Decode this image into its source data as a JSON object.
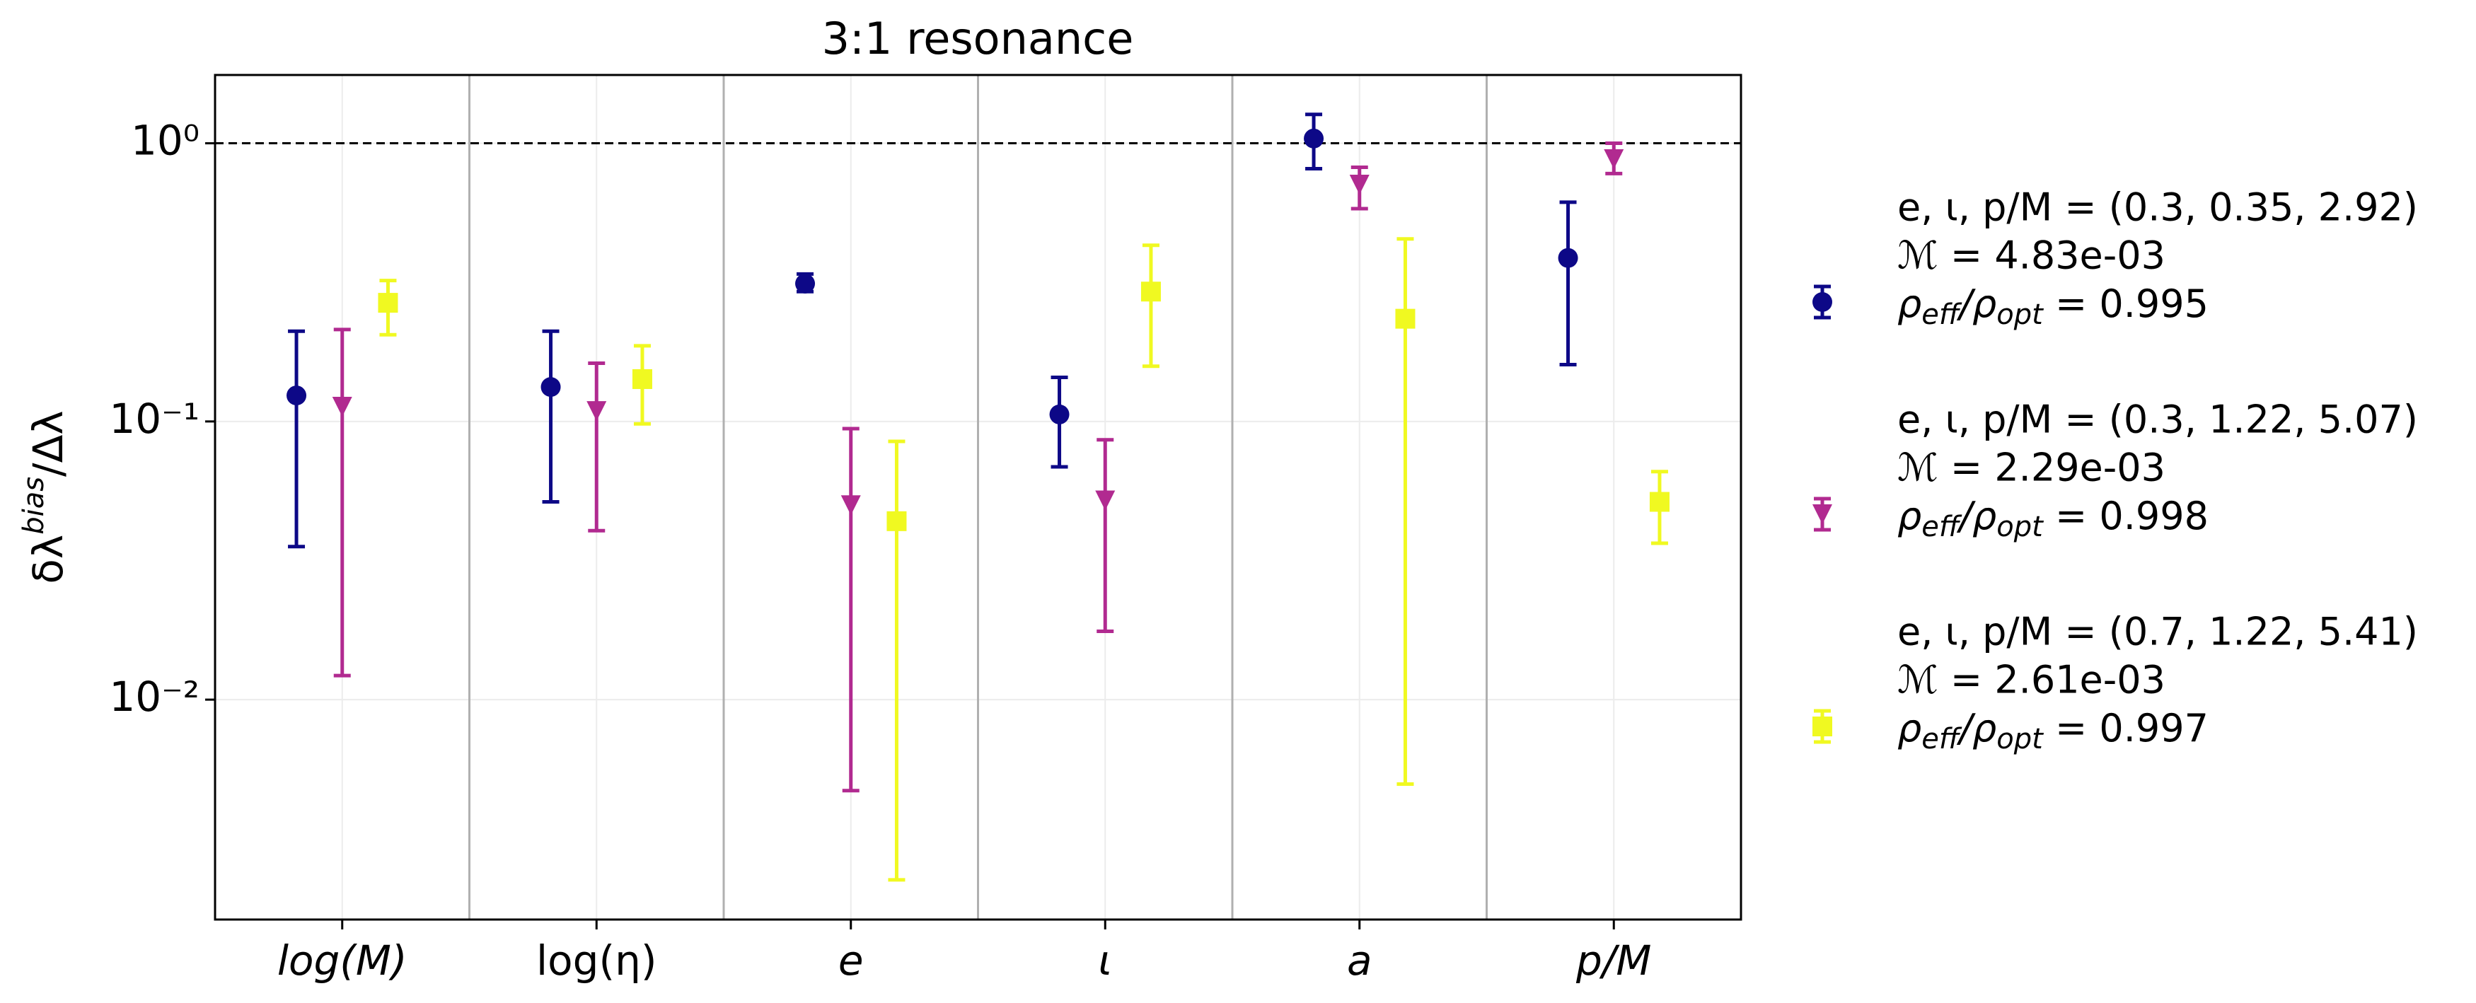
{
  "chart_data": {
    "type": "errorbar",
    "title": "3:1 resonance",
    "ylabel": [
      "δλ",
      "bias",
      "/Δλ"
    ],
    "log_y": true,
    "grid": true,
    "categories": [
      "log(M)",
      "log(η)",
      "e",
      "ι",
      "a",
      "p/M"
    ],
    "ylim": [
      0.00162,
      1.76
    ],
    "yticks": [
      {
        "value": 1,
        "label": "10⁰"
      },
      {
        "value": 0.1,
        "label": "10⁻¹"
      },
      {
        "value": 0.01,
        "label": "10⁻²"
      }
    ],
    "reference_line": 1,
    "legend_position": "right",
    "series": [
      {
        "name": "e, ι, p/M = (0.3, 0.35, 2.92)",
        "mismatch": "ℳ = 4.83e-03",
        "snr_label": [
          "ρ",
          "eff",
          "/ρ",
          "opt",
          " = 0.995"
        ],
        "color": "#0d0887",
        "marker": "o",
        "values": [
          0.124,
          0.133,
          0.313,
          0.106,
          1.04,
          0.387
        ],
        "lower": [
          0.0355,
          0.0514,
          0.293,
          0.0687,
          0.81,
          0.16
        ],
        "upper": [
          0.211,
          0.211,
          0.339,
          0.144,
          1.27,
          0.614
        ]
      },
      {
        "name": "e, ι, p/M = (0.3, 1.22, 5.07)",
        "mismatch": "ℳ = 2.29e-03",
        "snr_label": [
          "ρ",
          "eff",
          "/ρ",
          "opt",
          " = 0.998"
        ],
        "color": "#b12a90",
        "marker": "v",
        "values": [
          0.113,
          0.109,
          0.05,
          0.052,
          0.71,
          0.877
        ],
        "lower": [
          0.0122,
          0.0405,
          0.00471,
          0.0176,
          0.582,
          0.778
        ],
        "upper": [
          0.214,
          0.162,
          0.0942,
          0.0859,
          0.82,
          1.0
        ]
      },
      {
        "name": "e, ι, p/M = (0.7, 1.22, 5.41)",
        "mismatch": "ℳ = 2.61e-03",
        "snr_label": [
          "ρ",
          "eff",
          "/ρ",
          "opt",
          " = 0.997"
        ],
        "color": "#f0f921",
        "marker": "s",
        "values": [
          0.267,
          0.142,
          0.0438,
          0.293,
          0.234,
          0.0514
        ],
        "lower": [
          0.205,
          0.098,
          0.00225,
          0.158,
          0.00497,
          0.0365
        ],
        "upper": [
          0.321,
          0.187,
          0.0848,
          0.43,
          0.453,
          0.066
        ]
      }
    ]
  }
}
